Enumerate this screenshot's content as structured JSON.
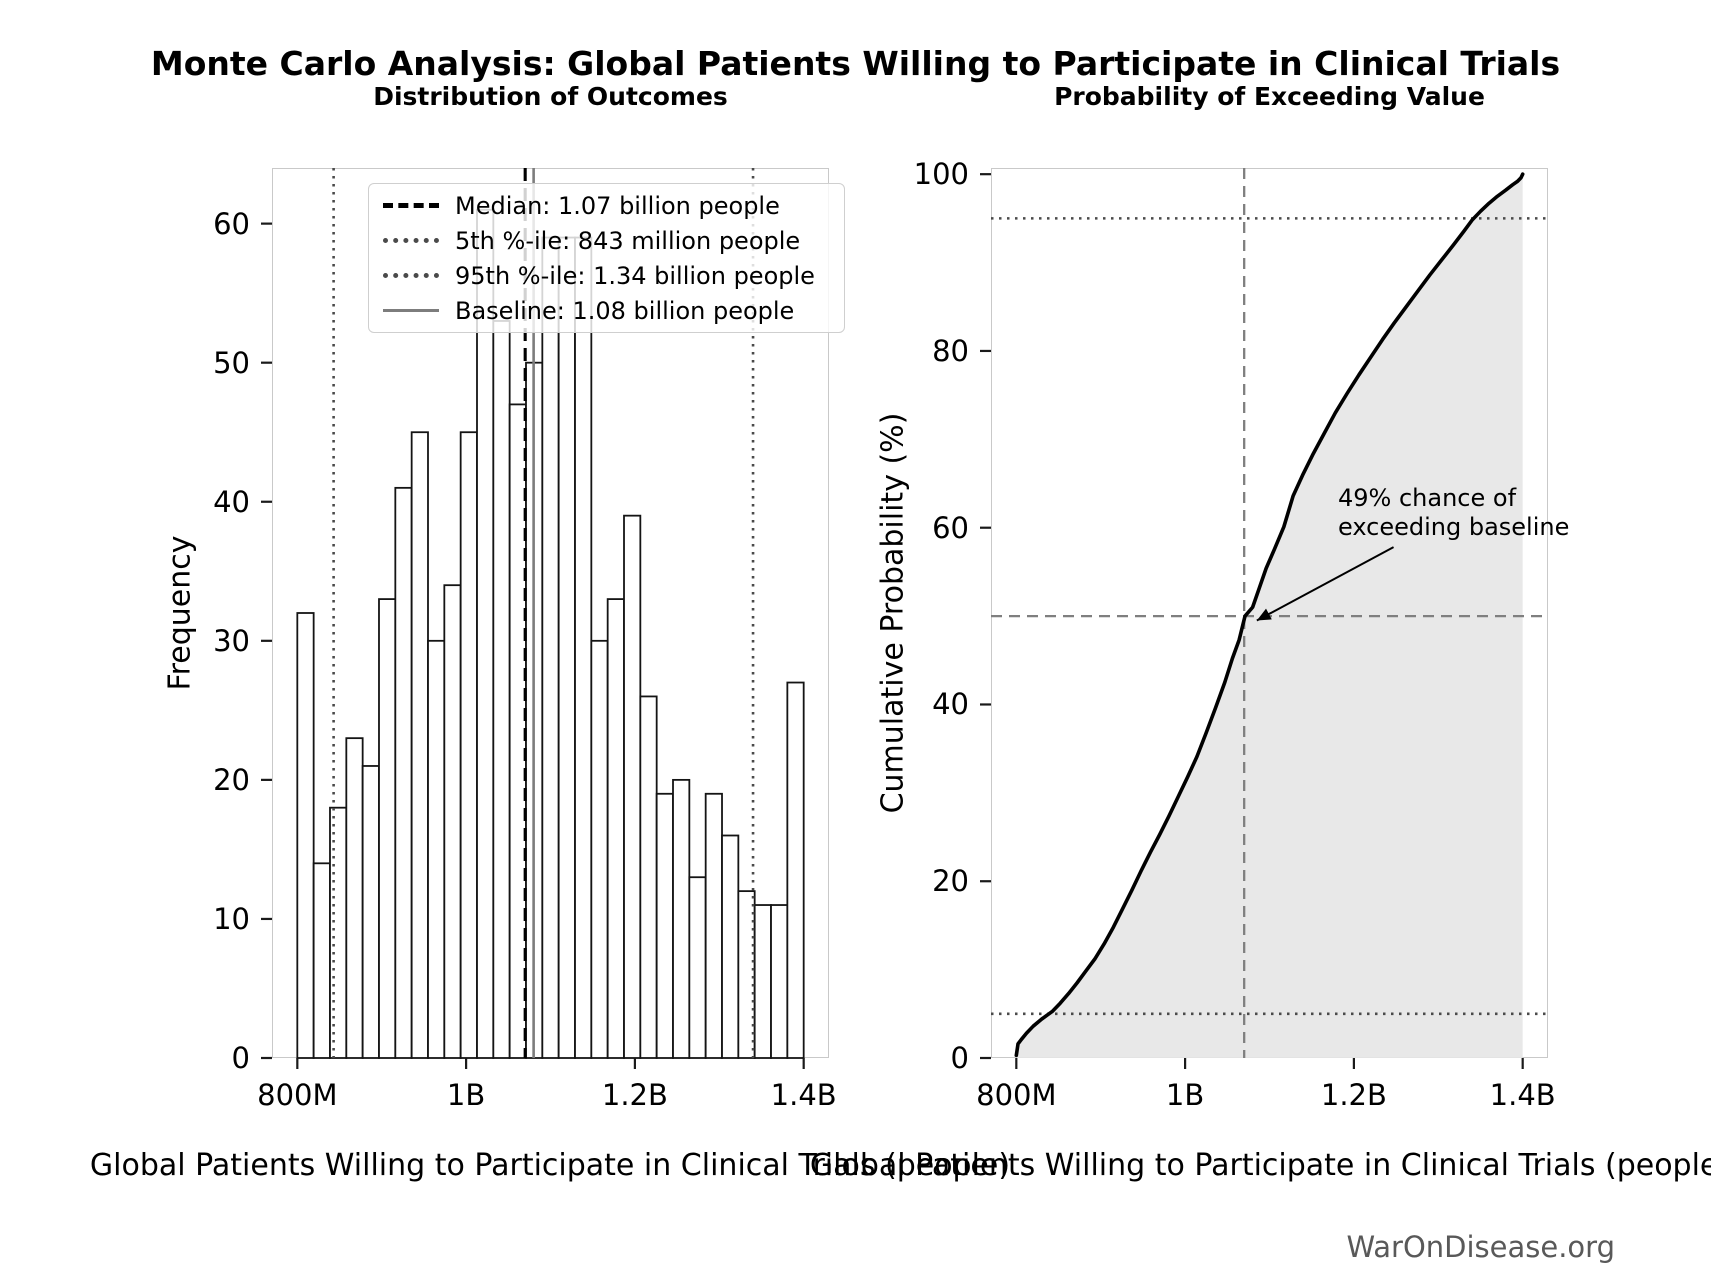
{
  "suptitle": "Monte Carlo Analysis: Global Patients Willing to Participate in Clinical Trials",
  "footer": "WarOnDisease.org",
  "xlabel": "Global Patients Willing to Participate in Clinical Trials (people)",
  "left": {
    "title": "Distribution of Outcomes",
    "ylabel": "Frequency",
    "legend_labels": [
      "Median: 1.07 billion people",
      "5th %-ile: 843 million people",
      "95th %-ile: 1.34 billion people",
      "Baseline: 1.08 billion people"
    ]
  },
  "right": {
    "title": "Probability of Exceeding Value",
    "ylabel": "Cumulative Probability (%)",
    "annotation_line1": "49% chance of",
    "annotation_line2": "exceeding baseline"
  },
  "chart_data": [
    {
      "type": "bar",
      "subtype": "histogram",
      "title": "Distribution of Outcomes",
      "xlabel": "Global Patients Willing to Participate in Clinical Trials (people)",
      "ylabel": "Frequency",
      "x_unit": "million people",
      "bin_start": 800,
      "bin_width": 19.3548,
      "n_samples": 1000,
      "values": [
        32,
        14,
        18,
        23,
        21,
        33,
        41,
        45,
        30,
        34,
        45,
        61,
        53,
        47,
        50,
        59,
        59,
        59,
        30,
        33,
        39,
        26,
        19,
        20,
        13,
        19,
        16,
        12,
        11,
        11,
        27
      ],
      "xlim": [
        770,
        1430
      ],
      "ylim": [
        0,
        64
      ],
      "x_ticks": [
        {
          "value": 800,
          "label": "800M"
        },
        {
          "value": 1000,
          "label": "1B"
        },
        {
          "value": 1200,
          "label": "1.2B"
        },
        {
          "value": 1400,
          "label": "1.4B"
        }
      ],
      "y_ticks": [
        {
          "value": 0,
          "label": "0"
        },
        {
          "value": 10,
          "label": "10"
        },
        {
          "value": 20,
          "label": "20"
        },
        {
          "value": 30,
          "label": "30"
        },
        {
          "value": 40,
          "label": "40"
        },
        {
          "value": 50,
          "label": "50"
        },
        {
          "value": 60,
          "label": "60"
        }
      ],
      "vlines": [
        {
          "value": 1070,
          "style": "median",
          "label": "Median: 1.07 billion people"
        },
        {
          "value": 843,
          "style": "dotted",
          "label": "5th %-ile: 843 million people"
        },
        {
          "value": 1340,
          "style": "dotted",
          "label": "95th %-ile: 1.34 billion people"
        },
        {
          "value": 1080,
          "style": "baseline",
          "label": "Baseline: 1.08 billion people"
        }
      ],
      "grid": false,
      "legend_position": "upper left"
    },
    {
      "type": "line",
      "subtype": "empirical-cdf",
      "title": "Probability of Exceeding Value",
      "xlabel": "Global Patients Willing to Participate in Clinical Trials (people)",
      "ylabel": "Cumulative Probability (%)",
      "x_unit": "million people",
      "fill_under": true,
      "points": [
        [
          800,
          0.3
        ],
        [
          802,
          1.6
        ],
        [
          806,
          2.1
        ],
        [
          812,
          2.8
        ],
        [
          820,
          3.6
        ],
        [
          830,
          4.4
        ],
        [
          843,
          5.3
        ],
        [
          852,
          6.2
        ],
        [
          862,
          7.3
        ],
        [
          872,
          8.5
        ],
        [
          882,
          9.8
        ],
        [
          893,
          11.2
        ],
        [
          904,
          12.9
        ],
        [
          915,
          14.8
        ],
        [
          926,
          16.9
        ],
        [
          937,
          19.0
        ],
        [
          948,
          21.2
        ],
        [
          959,
          23.3
        ],
        [
          970,
          25.3
        ],
        [
          981,
          27.4
        ],
        [
          992,
          29.6
        ],
        [
          1003,
          31.8
        ],
        [
          1014,
          34.1
        ],
        [
          1025,
          36.8
        ],
        [
          1036,
          39.6
        ],
        [
          1047,
          42.5
        ],
        [
          1056,
          45.2
        ],
        [
          1064,
          47.3
        ],
        [
          1071,
          50.0
        ],
        [
          1080,
          51.0
        ],
        [
          1088,
          53.2
        ],
        [
          1096,
          55.4
        ],
        [
          1106,
          57.6
        ],
        [
          1117,
          60.1
        ],
        [
          1128,
          63.6
        ],
        [
          1140,
          66.1
        ],
        [
          1152,
          68.4
        ],
        [
          1165,
          70.7
        ],
        [
          1178,
          73.0
        ],
        [
          1192,
          75.2
        ],
        [
          1206,
          77.3
        ],
        [
          1220,
          79.3
        ],
        [
          1234,
          81.3
        ],
        [
          1248,
          83.2
        ],
        [
          1262,
          85.0
        ],
        [
          1276,
          86.8
        ],
        [
          1290,
          88.6
        ],
        [
          1304,
          90.3
        ],
        [
          1318,
          92.0
        ],
        [
          1330,
          93.5
        ],
        [
          1340,
          94.8
        ],
        [
          1350,
          95.8
        ],
        [
          1360,
          96.7
        ],
        [
          1370,
          97.5
        ],
        [
          1380,
          98.2
        ],
        [
          1388,
          98.8
        ],
        [
          1394,
          99.2
        ],
        [
          1398,
          99.6
        ],
        [
          1400,
          100
        ]
      ],
      "xlim": [
        770,
        1430
      ],
      "ylim": [
        0,
        100.7
      ],
      "x_ticks": [
        {
          "value": 800,
          "label": "800M"
        },
        {
          "value": 1000,
          "label": "1B"
        },
        {
          "value": 1200,
          "label": "1.2B"
        },
        {
          "value": 1400,
          "label": "1.4B"
        }
      ],
      "y_ticks": [
        {
          "value": 0,
          "label": "0"
        },
        {
          "value": 20,
          "label": "20"
        },
        {
          "value": 40,
          "label": "40"
        },
        {
          "value": 60,
          "label": "60"
        },
        {
          "value": 80,
          "label": "80"
        },
        {
          "value": 100,
          "label": "100"
        }
      ],
      "hlines": [
        {
          "value": 5,
          "style": "dotted"
        },
        {
          "value": 95,
          "style": "dotted"
        },
        {
          "value": 50,
          "style": "dashed"
        }
      ],
      "vlines": [
        {
          "value": 1070,
          "style": "dashed"
        }
      ],
      "annotation": {
        "text": "49% chance of exceeding baseline",
        "arrow_tip_xy": [
          1085,
          49.5
        ],
        "arrow_tail_xy": [
          1247,
          57.8
        ]
      },
      "grid": false
    }
  ],
  "colors": {
    "bar_fill": "#ffffff",
    "bar_edge": "#141414",
    "median_line": "#000000",
    "percentile_line": "#4a4a4a",
    "baseline_line": "#7d7d7d",
    "curve": "#000000",
    "cdf_fill": "#e6e6e6",
    "crosshair": "#7f7f7f",
    "spine": "#c9c9c9",
    "footer_text": "#595959"
  }
}
